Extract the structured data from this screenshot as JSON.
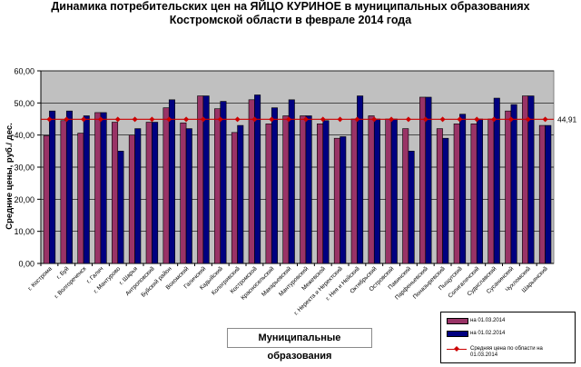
{
  "title": {
    "line1": "Динамика потребительских цен на ЯЙЦО КУРИНОЕ в муниципальных образованиях",
    "line2": "Костромской области в феврале 2014 года"
  },
  "x_axis_title": "Муниципальные  образования",
  "legend": {
    "s1": "на 01.03.2014",
    "s2": "на 01.02.2014",
    "avg": "Средняя цена по области  на 01.03.2014"
  },
  "colors": {
    "plot_bg": "#c0c0c0",
    "s1": "#993366",
    "s2": "#000080",
    "avg": "#cc0000"
  },
  "chart_data": {
    "type": "bar",
    "ylabel": "Средние  цены,  руб./ дес.",
    "xlabel": "Муниципальные  образования",
    "ylim": [
      0,
      60
    ],
    "yticks": [
      "0,00",
      "10,00",
      "20,00",
      "30,00",
      "40,00",
      "50,00",
      "60,00"
    ],
    "grid": true,
    "legend_position": "bottom-right",
    "categories": [
      "г. Кострома",
      "г. Буй",
      "г. Волгореченск",
      "г. Галич",
      "г. Мантурово",
      "г. Шарья",
      "Антроповский",
      "Буйский район",
      "Вохомский",
      "Галичский",
      "Кадыйский",
      "Кологривский",
      "Костромской",
      "Красносельский",
      "Макарьевский",
      "Мантуровский",
      "Межевской",
      "г. Нерехта и Нерехтский",
      "г. Нея и Нейский",
      "Октябрьский",
      "Островский",
      "Павинский",
      "Парфеньевский",
      "Поназыревский",
      "Пыщугский",
      "Солигаличский",
      "Судиславский",
      "Сусанинский",
      "Чухломский",
      "Шарьинский"
    ],
    "series": [
      {
        "name": "на 01.03.2014",
        "values": [
          39.8,
          44.5,
          40.6,
          47.0,
          44.0,
          40.0,
          44.0,
          48.5,
          43.8,
          52.2,
          48.2,
          40.8,
          51.0,
          43.5,
          46.0,
          46.0,
          43.5,
          39.0,
          45.0,
          46.0,
          45.0,
          42.0,
          51.8,
          42.0,
          43.5,
          43.5,
          45.0,
          47.5,
          52.2,
          43.0
        ]
      },
      {
        "name": "на 01.02.2014",
        "values": [
          47.5,
          47.5,
          46.0,
          47.0,
          35.0,
          42.0,
          44.0,
          51.0,
          42.0,
          52.2,
          50.5,
          43.0,
          52.5,
          48.5,
          51.0,
          46.0,
          44.5,
          39.5,
          52.2,
          45.0,
          45.0,
          35.0,
          51.8,
          39.0,
          46.5,
          45.0,
          51.5,
          49.5,
          52.2,
          43.0
        ]
      }
    ],
    "average": {
      "name": "Средняя цена по области  на 01.03.2014",
      "value": 44.91,
      "label": "44,91"
    }
  }
}
